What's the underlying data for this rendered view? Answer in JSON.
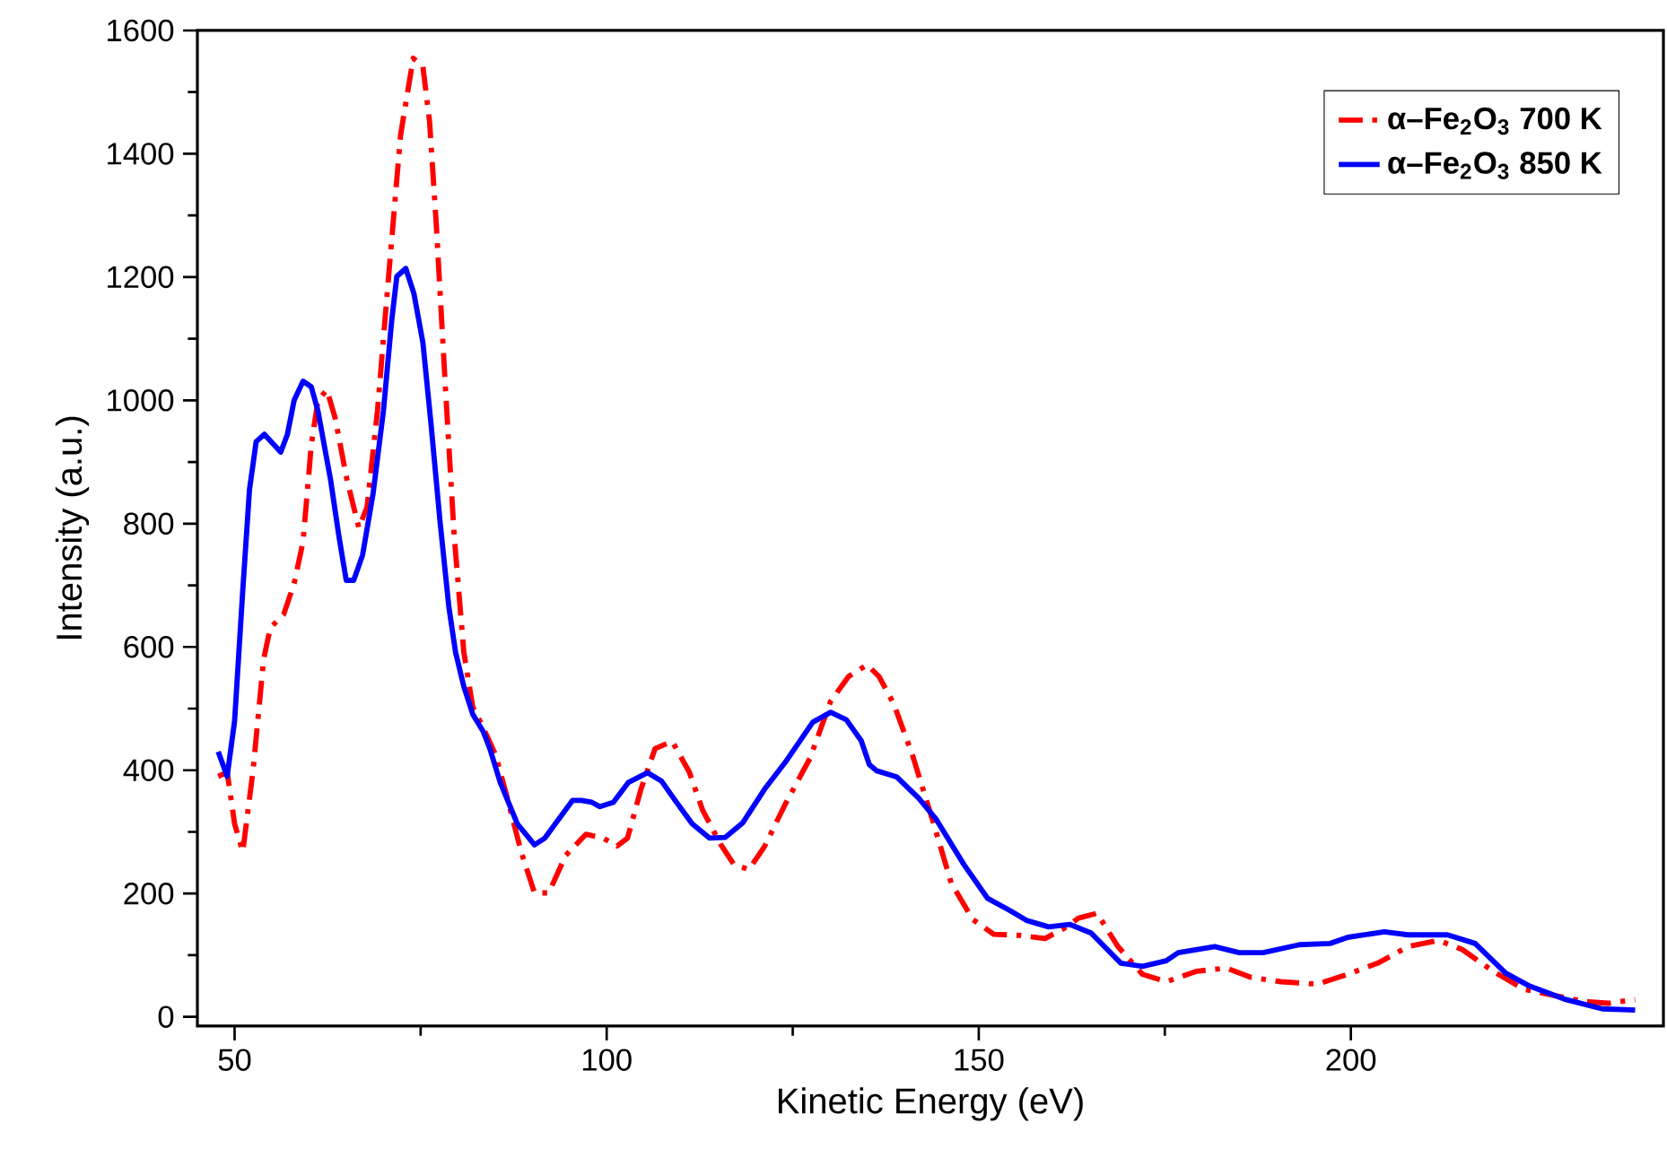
{
  "chart_data": {
    "type": "line",
    "xlabel": "Kinetic Energy (eV)",
    "ylabel": "Intensity (a.u.)",
    "xlim": [
      45,
      242
    ],
    "ylim": [
      -15,
      1600
    ],
    "xticks": [
      50,
      100,
      150,
      200
    ],
    "yticks": [
      0,
      200,
      400,
      600,
      800,
      1000,
      1200,
      1400,
      1600
    ],
    "grid": false,
    "legend": "top right",
    "marker": "none",
    "series": [
      {
        "name": "α–Fe$_{2}$O$_{3}$  700 K",
        "color": "#ff0000",
        "line_style": "dashdot",
        "x": [
          47.8,
          49.0,
          50.0,
          51.1,
          52.5,
          53.9,
          54.8,
          56.6,
          58.0,
          59.2,
          60.3,
          61.2,
          62.4,
          63.5,
          65.1,
          66.7,
          67.8,
          69.2,
          70.5,
          72.3,
          74.0,
          75.3,
          76.2,
          77.1,
          78.3,
          79.5,
          80.8,
          82.0,
          83.4,
          85.1,
          86.6,
          88.5,
          90.3,
          92.2,
          94.5,
          97.2,
          99.5,
          101.4,
          102.8,
          104.6,
          106.5,
          108.8,
          111.1,
          112.9,
          115.3,
          117.1,
          119.1,
          121.2,
          124.0,
          127.3,
          130.1,
          132.5,
          135.0,
          136.6,
          138.6,
          141.1,
          143.9,
          146.3,
          149.2,
          152.0,
          155.7,
          158.9,
          161.4,
          163.4,
          165.9,
          168.7,
          172.0,
          175.2,
          179.3,
          183.3,
          186.6,
          190.6,
          195.5,
          199.6,
          203.6,
          207.7,
          211.8,
          215.0,
          219.1,
          223.2,
          227.2,
          231.3,
          234.6,
          238.2
        ],
        "values": [
          390,
          397,
          313,
          268,
          402,
          580,
          631,
          653,
          703,
          771,
          927,
          1000,
          1017,
          972,
          871,
          793,
          827,
          983,
          1173,
          1430,
          1555,
          1542,
          1452,
          1286,
          1027,
          782,
          592,
          503,
          469,
          424,
          357,
          268,
          201,
          201,
          262,
          296,
          290,
          277,
          290,
          369,
          435,
          447,
          397,
          335,
          280,
          247,
          239,
          276,
          345,
          419,
          512,
          552,
          571,
          552,
          507,
          424,
          315,
          217,
          158,
          134,
          132,
          127,
          143,
          160,
          168,
          114,
          69,
          57,
          74,
          79,
          64,
          57,
          53,
          69,
          87,
          114,
          124,
          109,
          74,
          45,
          35,
          25,
          22,
          28
        ]
      },
      {
        "name": "α–Fe$_{2}$O$_{3}$  850 K",
        "color": "#0000ff",
        "line_style": "solid",
        "x": [
          47.8,
          49.0,
          50.0,
          51.1,
          52.0,
          52.9,
          54.0,
          56.2,
          57.1,
          58.0,
          59.2,
          60.3,
          61.2,
          62.9,
          64.0,
          65.0,
          66.0,
          67.2,
          68.6,
          70.0,
          71.1,
          71.8,
          73.0,
          74.1,
          75.3,
          76.4,
          77.6,
          78.8,
          79.7,
          80.8,
          82.0,
          83.4,
          84.3,
          85.7,
          88.0,
          90.3,
          91.7,
          93.4,
          95.4,
          96.6,
          98.0,
          99.1,
          100.9,
          102.9,
          105.5,
          107.4,
          109.2,
          111.5,
          113.8,
          115.9,
          118.3,
          121.2,
          124.0,
          127.7,
          130.1,
          132.2,
          134.2,
          135.3,
          136.3,
          139.0,
          141.9,
          144.3,
          148.0,
          151.2,
          154.1,
          156.5,
          159.4,
          162.2,
          165.1,
          169.1,
          172.0,
          175.2,
          176.8,
          181.7,
          185.0,
          188.2,
          193.1,
          197.2,
          199.6,
          204.5,
          207.7,
          213.0,
          216.7,
          220.8,
          224.0,
          228.9,
          233.8,
          238.2
        ],
        "values": [
          430,
          390,
          480,
          692,
          855,
          933,
          945,
          916,
          945,
          1000,
          1031,
          1022,
          983,
          871,
          781,
          708,
          708,
          749,
          848,
          983,
          1128,
          1201,
          1214,
          1173,
          1094,
          961,
          804,
          664,
          591,
          536,
          491,
          463,
          435,
          380,
          313,
          279,
          290,
          318,
          351,
          351,
          348,
          341,
          348,
          380,
          396,
          382,
          351,
          313,
          290,
          291,
          315,
          369,
          413,
          478,
          494,
          482,
          448,
          409,
          399,
          389,
          355,
          320,
          247,
          192,
          173,
          156,
          146,
          150,
          136,
          87,
          82,
          91,
          104,
          114,
          104,
          104,
          117,
          119,
          129,
          138,
          133,
          133,
          119,
          71,
          50,
          28,
          13,
          11
        ]
      }
    ]
  }
}
